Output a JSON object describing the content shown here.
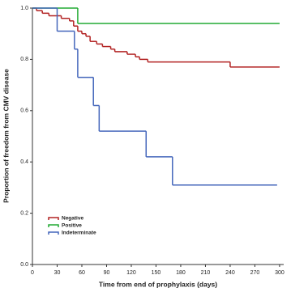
{
  "chart_data": {
    "type": "step",
    "xlabel": "Time from end of prophylaxis (days)",
    "ylabel": "Proportion of freedom from CMV disease",
    "xlim": [
      0,
      305
    ],
    "xticks": [
      0,
      30,
      60,
      90,
      120,
      150,
      180,
      210,
      240,
      270,
      300
    ],
    "ylim": [
      0,
      1
    ],
    "yticks": [
      {
        "value": 0,
        "label": "0.0"
      },
      0.2,
      0.4,
      0.6,
      0.8,
      {
        "value": 1,
        "label": "1.0"
      }
    ],
    "legend": "lower left",
    "series": [
      {
        "name": "Negative",
        "color": "#b22222",
        "x": [
          0,
          5,
          12,
          20,
          35,
          45,
          50,
          55,
          60,
          65,
          70,
          78,
          85,
          95,
          100,
          115,
          125,
          130,
          140,
          240,
          300
        ],
        "values": [
          1.0,
          0.99,
          0.98,
          0.97,
          0.96,
          0.95,
          0.93,
          0.91,
          0.9,
          0.89,
          0.87,
          0.86,
          0.85,
          0.84,
          0.83,
          0.82,
          0.81,
          0.8,
          0.79,
          0.77,
          0.77
        ]
      },
      {
        "name": "Positive",
        "color": "#22aa33",
        "x": [
          0,
          55,
          300
        ],
        "values": [
          1.0,
          0.94,
          0.94
        ]
      },
      {
        "name": "Indeterminate",
        "color": "#4466bb",
        "x": [
          0,
          30,
          51,
          55,
          74,
          81,
          138,
          170,
          297
        ],
        "values": [
          1.0,
          0.91,
          0.84,
          0.73,
          0.62,
          0.52,
          0.42,
          0.31,
          0.31
        ]
      }
    ]
  }
}
